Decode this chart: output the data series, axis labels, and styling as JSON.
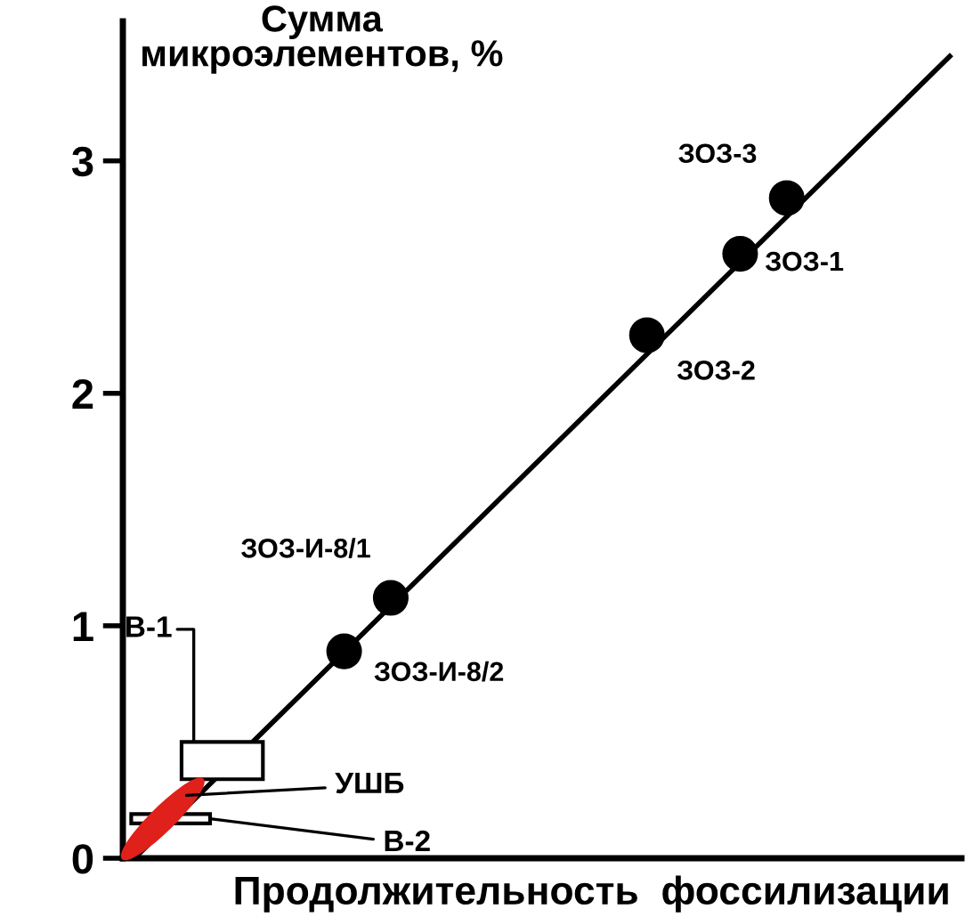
{
  "chart_data": {
    "type": "scatter",
    "xlabel": "Продолжительность  фоссилизации",
    "ylabel": "Сумма\nмикроэлементов, %",
    "categories": [
      null,
      null,
      null,
      null,
      null,
      null,
      null,
      null,
      null,
      null,
      null,
      null,
      null,
      null,
      null,
      null,
      null,
      null,
      null,
      null,
      null,
      null,
      null,
      null,
      null,
      null,
      null,
      null,
      null,
      null,
      null,
      null,
      null,
      null,
      null,
      null
    ],
    "ylim": [
      0,
      3.6
    ],
    "yticks": [
      0,
      1,
      2,
      3
    ],
    "tick_labels": "y",
    "series": [
      {
        "type": "line",
        "color": "#000000",
        "values": [
          0,
          null,
          null,
          null,
          null,
          null,
          null,
          null,
          null,
          null,
          null,
          null,
          null,
          null,
          null,
          null,
          null,
          null,
          null,
          null,
          null,
          null,
          null,
          null,
          null,
          null,
          null,
          null,
          null,
          null,
          null,
          null,
          null,
          null,
          null,
          3.45
        ]
      },
      {
        "marker": "circle",
        "color": "#000000",
        "values": [
          null,
          null,
          null,
          null,
          null,
          null,
          null,
          null,
          null,
          0.89,
          null,
          1.12,
          null,
          null,
          null,
          null,
          null,
          null,
          null,
          null,
          null,
          null,
          2.25,
          null,
          null,
          null,
          2.6,
          null,
          2.84,
          null,
          null,
          null,
          null,
          null,
          null,
          null
        ]
      }
    ],
    "bands": [
      {
        "axis": "y",
        "from": 0.34,
        "to": 0.5,
        "label": "В-1",
        "color": "#ffffff"
      },
      {
        "axis": "y",
        "from": 0.15,
        "to": 0.19,
        "label": "В-2",
        "color": "#ffffff"
      }
    ],
    "annotations": [
      "ЗОЗ-И-8/2",
      "ЗОЗ-И-8/1",
      "ЗОЗ-2",
      "ЗОЗ-1",
      "ЗОЗ-3",
      "УШБ"
    ]
  }
}
